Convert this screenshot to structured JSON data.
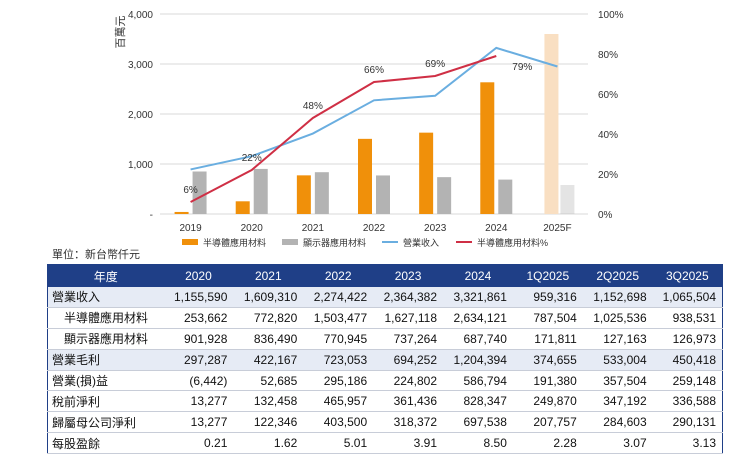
{
  "chart_data": {
    "type": "bar+line",
    "categories": [
      "2019",
      "2020",
      "2021",
      "2022",
      "2023",
      "2024",
      "2025F"
    ],
    "y_left": {
      "label": "百萬元",
      "range": [
        0,
        4000
      ],
      "ticks": [
        "-",
        "1,000",
        "2,000",
        "3,000",
        "4,000"
      ]
    },
    "y_right": {
      "range": [
        0,
        100
      ],
      "ticks": [
        "0%",
        "20%",
        "40%",
        "60%",
        "80%",
        "100%"
      ]
    },
    "series": [
      {
        "name": "半導體應用材料",
        "type": "bar",
        "color": "#f0900a",
        "values": [
          41,
          254,
          773,
          1503,
          1627,
          2634,
          null
        ]
      },
      {
        "name": "顯示器應用材料",
        "type": "bar",
        "color": "#b3b3b3",
        "values": [
          850,
          902,
          836,
          771,
          737,
          688,
          580
        ]
      },
      {
        "name": "營業收入",
        "type": "line",
        "color": "#6aaee0",
        "values": [
          891,
          1156,
          1609,
          2274,
          2364,
          3322,
          2950
        ]
      },
      {
        "name": "半導體應用材料%",
        "type": "line",
        "color": "#cf2f45",
        "values_pct": [
          6,
          22,
          48,
          66,
          69,
          79
        ]
      }
    ],
    "forecast_bar": {
      "category": "2025F",
      "value": 3600,
      "color": "#f9dfc2"
    },
    "data_labels": [
      {
        "category": "2019",
        "text": "6%"
      },
      {
        "category": "2020",
        "text": "22%"
      },
      {
        "category": "2021",
        "text": "48%"
      },
      {
        "category": "2022",
        "text": "66%"
      },
      {
        "category": "2023",
        "text": "69%"
      },
      {
        "category": "2024",
        "text": "79%"
      }
    ],
    "legend": [
      "半導體應用材料",
      "顯示器應用材料",
      "營業收入",
      "半導體應用材料%"
    ],
    "legend_position": "bottom"
  },
  "unit_note": "單位：新台幣仟元",
  "table": {
    "header": [
      "年度",
      "2020",
      "2021",
      "2022",
      "2023",
      "2024",
      "1Q2025",
      "2Q2025",
      "3Q2025"
    ],
    "rows": [
      {
        "label": "營業收入",
        "sub": false,
        "shade": true,
        "values": [
          "1,155,590",
          "1,609,310",
          "2,274,422",
          "2,364,382",
          "3,321,861",
          "959,316",
          "1,152,698",
          "1,065,504"
        ]
      },
      {
        "label": "半導體應用材料",
        "sub": true,
        "shade": false,
        "values": [
          "253,662",
          "772,820",
          "1,503,477",
          "1,627,118",
          "2,634,121",
          "787,504",
          "1,025,536",
          "938,531"
        ]
      },
      {
        "label": "顯示器應用材料",
        "sub": true,
        "shade": false,
        "values": [
          "901,928",
          "836,490",
          "770,945",
          "737,264",
          "687,740",
          "171,811",
          "127,163",
          "126,973"
        ]
      },
      {
        "label": "營業毛利",
        "sub": false,
        "shade": true,
        "values": [
          "297,287",
          "422,167",
          "723,053",
          "694,252",
          "1,204,394",
          "374,655",
          "533,004",
          "450,418"
        ]
      },
      {
        "label": "營業(損)益",
        "sub": false,
        "shade": false,
        "values": [
          "(6,442)",
          "52,685",
          "295,186",
          "224,802",
          "586,794",
          "191,380",
          "357,504",
          "259,148"
        ]
      },
      {
        "label": "稅前淨利",
        "sub": false,
        "shade": false,
        "values": [
          "13,277",
          "132,458",
          "465,957",
          "361,436",
          "828,347",
          "249,870",
          "347,192",
          "336,588"
        ]
      },
      {
        "label": "歸屬母公司淨利",
        "sub": false,
        "shade": false,
        "values": [
          "13,277",
          "122,346",
          "403,500",
          "318,372",
          "697,538",
          "207,757",
          "284,603",
          "290,131"
        ]
      },
      {
        "label": "每股盈餘",
        "sub": false,
        "shade": false,
        "values": [
          "0.21",
          "1.62",
          "5.01",
          "3.91",
          "8.50",
          "2.28",
          "3.07",
          "3.13"
        ]
      }
    ]
  }
}
